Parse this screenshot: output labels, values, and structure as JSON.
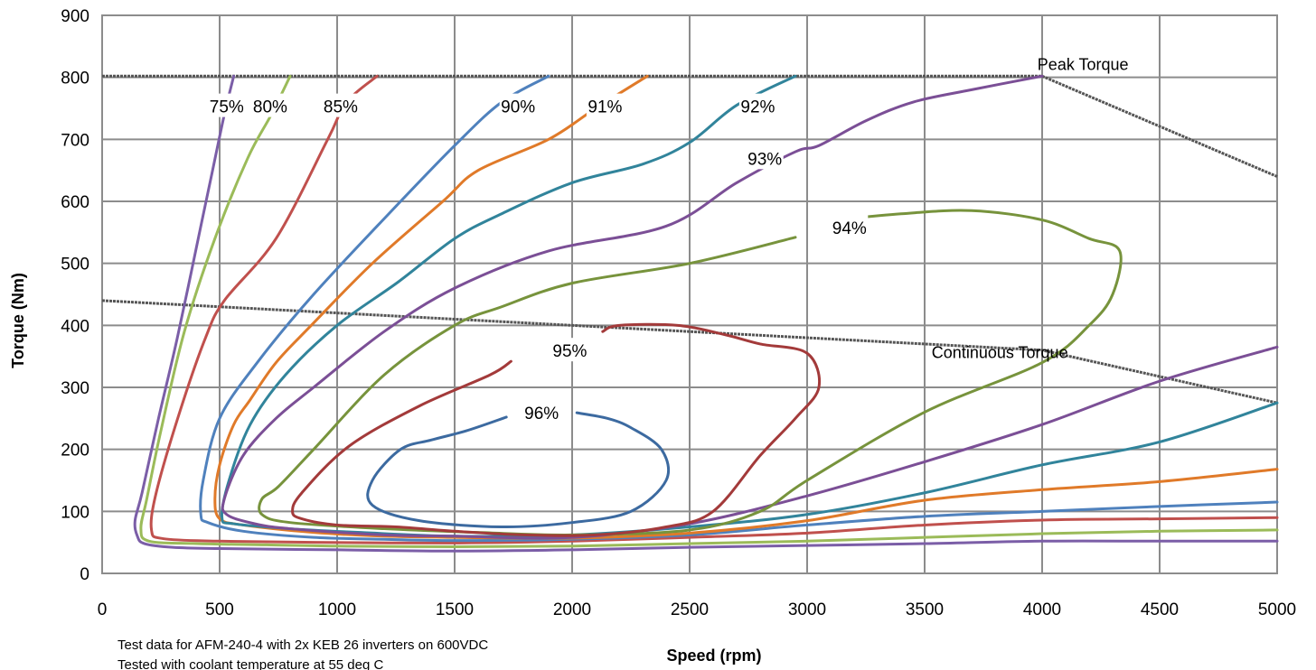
{
  "chart_data": {
    "type": "line",
    "title": "",
    "xlabel": "Speed (rpm)",
    "ylabel": "Torque (Nm)",
    "xlim": [
      0,
      5000
    ],
    "ylim": [
      0,
      900
    ],
    "x_ticks": [
      0,
      500,
      1000,
      1500,
      2000,
      2500,
      3000,
      3500,
      4000,
      4500,
      5000
    ],
    "y_ticks": [
      0,
      100,
      200,
      300,
      400,
      500,
      600,
      700,
      800,
      900
    ],
    "grid": true,
    "notes": [
      "Test data for AFM-240-4 with 2x KEB 26 inverters on 600VDC",
      "Tested with coolant temperature at 55 deg C"
    ],
    "reference_lines": [
      {
        "name": "Peak Torque",
        "color": "#555555",
        "dashed": true,
        "points": [
          [
            0,
            802
          ],
          [
            4000,
            802
          ],
          [
            5000,
            640
          ]
        ],
        "label_at": [
          3980,
          812
        ]
      },
      {
        "name": "Continuous Torque",
        "color": "#555555",
        "dashed": true,
        "points": [
          [
            0,
            440
          ],
          [
            4000,
            360
          ],
          [
            5000,
            275
          ]
        ],
        "label_at": [
          3530,
          347
        ]
      }
    ],
    "series": [
      {
        "name": "75%",
        "color": "#7b5ea7",
        "label_at": [
          530,
          752
        ],
        "points": [
          [
            560,
            802
          ],
          [
            520,
            740
          ],
          [
            470,
            650
          ],
          [
            420,
            560
          ],
          [
            320,
            380
          ],
          [
            240,
            250
          ],
          [
            170,
            130
          ],
          [
            140,
            85
          ],
          [
            150,
            60
          ],
          [
            180,
            48
          ],
          [
            300,
            42
          ],
          [
            500,
            40
          ],
          [
            1000,
            38
          ],
          [
            1500,
            36
          ],
          [
            2000,
            38
          ],
          [
            2500,
            42
          ],
          [
            3000,
            45
          ],
          [
            3500,
            48
          ],
          [
            4000,
            52
          ],
          [
            4500,
            52
          ],
          [
            5000,
            52
          ]
        ]
      },
      {
        "name": "80%",
        "color": "#9bbb59",
        "label_at": [
          715,
          752
        ],
        "points": [
          [
            800,
            802
          ],
          [
            720,
            740
          ],
          [
            620,
            670
          ],
          [
            480,
            540
          ],
          [
            350,
            390
          ],
          [
            250,
            230
          ],
          [
            190,
            120
          ],
          [
            165,
            72
          ],
          [
            200,
            52
          ],
          [
            400,
            48
          ],
          [
            700,
            46
          ],
          [
            1000,
            44
          ],
          [
            1500,
            43
          ],
          [
            2000,
            44
          ],
          [
            2500,
            48
          ],
          [
            3000,
            52
          ],
          [
            3500,
            58
          ],
          [
            4000,
            64
          ],
          [
            4500,
            68
          ],
          [
            5000,
            70
          ]
        ]
      },
      {
        "name": "85%",
        "color": "#c0504d",
        "label_at": [
          1015,
          752
        ],
        "points": [
          [
            1170,
            802
          ],
          [
            1040,
            760
          ],
          [
            960,
            700
          ],
          [
            740,
            540
          ],
          [
            520,
            440
          ],
          [
            440,
            380
          ],
          [
            330,
            260
          ],
          [
            230,
            130
          ],
          [
            210,
            70
          ],
          [
            260,
            56
          ],
          [
            500,
            52
          ],
          [
            900,
            50
          ],
          [
            1500,
            49
          ],
          [
            2000,
            52
          ],
          [
            2500,
            58
          ],
          [
            3000,
            65
          ],
          [
            3500,
            78
          ],
          [
            4000,
            86
          ],
          [
            4500,
            88
          ],
          [
            5000,
            90
          ]
        ]
      },
      {
        "name": "90%",
        "color": "#4f81bd",
        "label_at": [
          1770,
          752
        ],
        "points": [
          [
            1900,
            802
          ],
          [
            1700,
            760
          ],
          [
            1500,
            690
          ],
          [
            1220,
            580
          ],
          [
            900,
            450
          ],
          [
            660,
            340
          ],
          [
            500,
            250
          ],
          [
            430,
            150
          ],
          [
            420,
            95
          ],
          [
            450,
            82
          ],
          [
            600,
            68
          ],
          [
            900,
            58
          ],
          [
            1200,
            55
          ],
          [
            1500,
            53
          ],
          [
            2000,
            55
          ],
          [
            2500,
            62
          ],
          [
            3000,
            78
          ],
          [
            3500,
            92
          ],
          [
            4000,
            100
          ],
          [
            4500,
            108
          ],
          [
            5000,
            115
          ]
        ]
      },
      {
        "name": "91%",
        "color": "#e07a29",
        "label_at": [
          2140,
          752
        ],
        "points": [
          [
            2320,
            802
          ],
          [
            2100,
            750
          ],
          [
            1900,
            700
          ],
          [
            1600,
            650
          ],
          [
            1450,
            600
          ],
          [
            1150,
            500
          ],
          [
            890,
            400
          ],
          [
            740,
            340
          ],
          [
            630,
            280
          ],
          [
            560,
            240
          ],
          [
            500,
            175
          ],
          [
            480,
            120
          ],
          [
            500,
            88
          ],
          [
            600,
            78
          ],
          [
            900,
            66
          ],
          [
            1200,
            60
          ],
          [
            1500,
            58
          ],
          [
            2000,
            57
          ],
          [
            2500,
            65
          ],
          [
            3000,
            85
          ],
          [
            3500,
            118
          ],
          [
            4000,
            135
          ],
          [
            4500,
            148
          ],
          [
            5000,
            168
          ]
        ]
      },
      {
        "name": "92%",
        "color": "#31849b",
        "label_at": [
          2790,
          752
        ],
        "points": [
          [
            2950,
            802
          ],
          [
            2700,
            755
          ],
          [
            2500,
            695
          ],
          [
            2300,
            660
          ],
          [
            2000,
            630
          ],
          [
            1700,
            580
          ],
          [
            1500,
            540
          ],
          [
            1260,
            470
          ],
          [
            1000,
            400
          ],
          [
            780,
            320
          ],
          [
            630,
            240
          ],
          [
            540,
            150
          ],
          [
            510,
            90
          ],
          [
            560,
            80
          ],
          [
            800,
            72
          ],
          [
            1100,
            66
          ],
          [
            1500,
            60
          ],
          [
            2000,
            62
          ],
          [
            2500,
            75
          ],
          [
            3000,
            95
          ],
          [
            3500,
            130
          ],
          [
            4000,
            175
          ],
          [
            4500,
            212
          ],
          [
            5000,
            275
          ]
        ]
      },
      {
        "name": "93%",
        "color": "#7b4f96",
        "label_at": [
          2820,
          668
        ],
        "points": [
          [
            4000,
            802
          ],
          [
            3700,
            780
          ],
          [
            3450,
            760
          ],
          [
            3250,
            730
          ],
          [
            3050,
            690
          ],
          [
            2950,
            680
          ],
          [
            2700,
            630
          ],
          [
            2400,
            560
          ],
          [
            1900,
            520
          ],
          [
            1500,
            460
          ],
          [
            1200,
            390
          ],
          [
            900,
            300
          ],
          [
            740,
            250
          ],
          [
            600,
            190
          ],
          [
            520,
            120
          ],
          [
            530,
            95
          ],
          [
            650,
            80
          ],
          [
            800,
            72
          ],
          [
            1200,
            62
          ],
          [
            1500,
            60
          ],
          [
            2000,
            58
          ],
          [
            2500,
            80
          ],
          [
            3000,
            125
          ],
          [
            3500,
            180
          ],
          [
            4000,
            240
          ],
          [
            4500,
            310
          ],
          [
            5000,
            365
          ]
        ]
      },
      {
        "name": "94%",
        "color": "#77933c",
        "label_at": [
          3180,
          556
        ],
        "points": [
          [
            2950,
            542
          ],
          [
            2500,
            500
          ],
          [
            2000,
            468
          ],
          [
            1700,
            430
          ],
          [
            1500,
            400
          ],
          [
            1200,
            320
          ],
          [
            900,
            200
          ],
          [
            750,
            140
          ],
          [
            680,
            120
          ],
          [
            680,
            95
          ],
          [
            800,
            82
          ],
          [
            1200,
            72
          ],
          [
            1600,
            66
          ],
          [
            2000,
            62
          ],
          [
            2500,
            70
          ],
          [
            2800,
            100
          ],
          [
            3000,
            150
          ],
          [
            3500,
            260
          ],
          [
            4000,
            340
          ],
          [
            4200,
            400
          ],
          [
            4300,
            450
          ],
          [
            4330,
            520
          ],
          [
            4200,
            540
          ],
          [
            4000,
            570
          ],
          [
            3700,
            585
          ],
          [
            3400,
            580
          ],
          [
            3120,
            570
          ]
        ]
      },
      {
        "name": "95%",
        "color": "#a33a3a",
        "label_at": [
          1990,
          358
        ],
        "points": [
          [
            1740,
            342
          ],
          [
            1650,
            320
          ],
          [
            1350,
            270
          ],
          [
            1050,
            205
          ],
          [
            850,
            130
          ],
          [
            810,
            100
          ],
          [
            850,
            88
          ],
          [
            1000,
            78
          ],
          [
            1250,
            75
          ],
          [
            1500,
            68
          ],
          [
            1800,
            62
          ],
          [
            2100,
            62
          ],
          [
            2400,
            75
          ],
          [
            2600,
            100
          ],
          [
            2800,
            190
          ],
          [
            2950,
            250
          ],
          [
            3050,
            300
          ],
          [
            3000,
            355
          ],
          [
            2800,
            370
          ],
          [
            2650,
            385
          ],
          [
            2450,
            400
          ],
          [
            2200,
            400
          ],
          [
            2130,
            390
          ]
        ]
      },
      {
        "name": "96%",
        "color": "#3c6aa0",
        "label_at": [
          1870,
          258
        ],
        "points": [
          [
            1720,
            252
          ],
          [
            1550,
            230
          ],
          [
            1400,
            215
          ],
          [
            1270,
            200
          ],
          [
            1150,
            150
          ],
          [
            1150,
            110
          ],
          [
            1350,
            85
          ],
          [
            1700,
            75
          ],
          [
            2000,
            82
          ],
          [
            2250,
            100
          ],
          [
            2400,
            150
          ],
          [
            2380,
            200
          ],
          [
            2250,
            235
          ],
          [
            2150,
            250
          ],
          [
            2020,
            259
          ]
        ]
      }
    ]
  }
}
